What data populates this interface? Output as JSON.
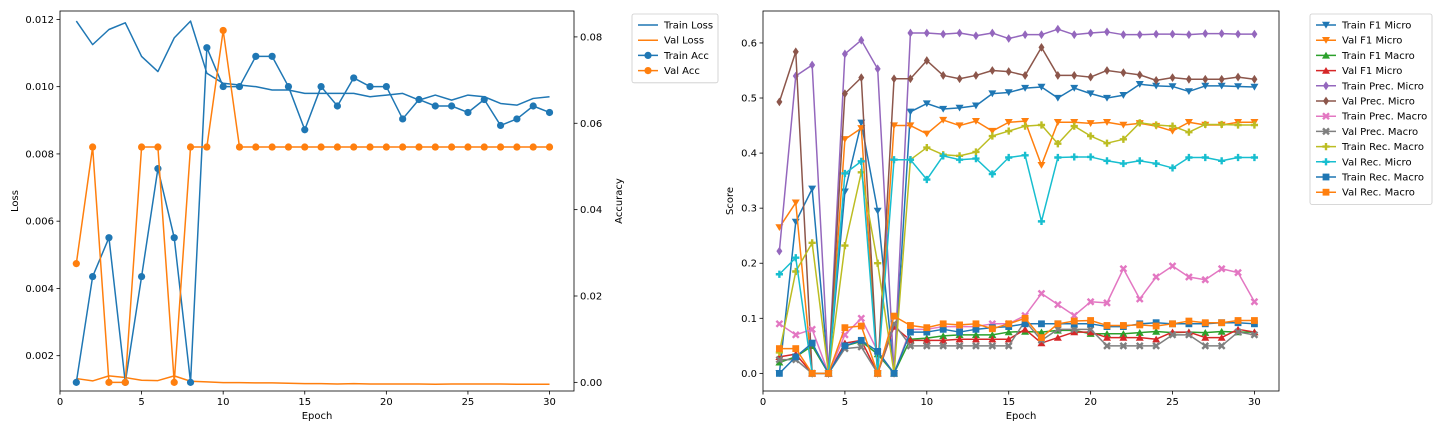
{
  "chart_data": [
    {
      "type": "line",
      "xlabel": "Epoch",
      "ylabel": "Loss",
      "y2label": "Accuracy",
      "x": [
        1,
        2,
        3,
        4,
        5,
        6,
        7,
        8,
        9,
        10,
        11,
        12,
        13,
        14,
        15,
        16,
        17,
        18,
        19,
        20,
        21,
        22,
        23,
        24,
        25,
        26,
        27,
        28,
        29,
        30
      ],
      "xlim": [
        0,
        31.5
      ],
      "ylim": [
        0.00095,
        0.01225
      ],
      "y2lim": [
        -0.002,
        0.086
      ],
      "xticks": [
        0,
        5,
        10,
        15,
        20,
        25,
        30
      ],
      "yticks": [
        0.002,
        0.004,
        0.006,
        0.008,
        0.01,
        0.012
      ],
      "ytick_labels": [
        "0.002",
        "0.004",
        "0.006",
        "0.008",
        "0.010",
        "0.012"
      ],
      "y2ticks": [
        0.0,
        0.02,
        0.04,
        0.06,
        0.08
      ],
      "y2tick_labels": [
        "0.00",
        "0.02",
        "0.04",
        "0.06",
        "0.08"
      ],
      "legend_position": "outside-top-right",
      "series": [
        {
          "name": "Train Loss",
          "axis": "left",
          "color": "#1f77b4",
          "marker": "none",
          "values": [
            0.01195,
            0.01125,
            0.0117,
            0.0119,
            0.0109,
            0.01045,
            0.01145,
            0.01195,
            0.0104,
            0.0101,
            0.01005,
            0.01,
            0.0099,
            0.0099,
            0.0098,
            0.0098,
            0.0098,
            0.0098,
            0.0097,
            0.00975,
            0.0098,
            0.0096,
            0.00975,
            0.0096,
            0.00975,
            0.0097,
            0.0095,
            0.00945,
            0.00965,
            0.0097
          ]
        },
        {
          "name": "Val Loss",
          "axis": "left",
          "color": "#ff7f0e",
          "marker": "none",
          "values": [
            0.00132,
            0.00125,
            0.0014,
            0.00135,
            0.00127,
            0.00126,
            0.0014,
            0.00124,
            0.00122,
            0.0012,
            0.0012,
            0.00119,
            0.00119,
            0.00118,
            0.00117,
            0.00117,
            0.00116,
            0.00117,
            0.00116,
            0.00116,
            0.00116,
            0.00116,
            0.00115,
            0.00116,
            0.00116,
            0.00116,
            0.00116,
            0.00115,
            0.00115,
            0.00115
          ]
        },
        {
          "name": "Train Acc",
          "axis": "right",
          "color": "#1f77b4",
          "marker": "circle",
          "values": [
            0.0,
            0.0245,
            0.0335,
            0.0,
            0.0245,
            0.0495,
            0.0335,
            0.0,
            0.0775,
            0.0685,
            0.0685,
            0.0755,
            0.0755,
            0.0685,
            0.0585,
            0.0685,
            0.064,
            0.0705,
            0.0685,
            0.0685,
            0.061,
            0.0655,
            0.064,
            0.064,
            0.0625,
            0.0655,
            0.0595,
            0.061,
            0.064,
            0.0625
          ]
        },
        {
          "name": "Val Acc",
          "axis": "right",
          "color": "#ff7f0e",
          "marker": "circle",
          "values": [
            0.0275,
            0.0545,
            0.0,
            0.0,
            0.0545,
            0.0545,
            0.0,
            0.0545,
            0.0545,
            0.0815,
            0.0545,
            0.0545,
            0.0545,
            0.0545,
            0.0545,
            0.0545,
            0.0545,
            0.0545,
            0.0545,
            0.0545,
            0.0545,
            0.0545,
            0.0545,
            0.0545,
            0.0545,
            0.0545,
            0.0545,
            0.0545,
            0.0545,
            0.0545
          ]
        }
      ]
    },
    {
      "type": "line",
      "xlabel": "Epoch",
      "ylabel": "Score",
      "x": [
        1,
        2,
        3,
        4,
        5,
        6,
        7,
        8,
        9,
        10,
        11,
        12,
        13,
        14,
        15,
        16,
        17,
        18,
        19,
        20,
        21,
        22,
        23,
        24,
        25,
        26,
        27,
        28,
        29,
        30
      ],
      "xlim": [
        0,
        31.5
      ],
      "ylim": [
        -0.032,
        0.658
      ],
      "xticks": [
        0,
        5,
        10,
        15,
        20,
        25,
        30
      ],
      "yticks": [
        0.0,
        0.1,
        0.2,
        0.3,
        0.4,
        0.5,
        0.6
      ],
      "ytick_labels": [
        "0.0",
        "0.1",
        "0.2",
        "0.3",
        "0.4",
        "0.5",
        "0.6"
      ],
      "legend_position": "outside-top-right",
      "series": [
        {
          "name": "Train F1 Micro",
          "color": "#1f77b4",
          "marker": "tri-down",
          "values": [
            0.0,
            0.275,
            0.335,
            0.0,
            0.33,
            0.455,
            0.295,
            0.0,
            0.475,
            0.49,
            0.48,
            0.482,
            0.486,
            0.508,
            0.51,
            0.518,
            0.52,
            0.5,
            0.518,
            0.508,
            0.5,
            0.505,
            0.525,
            0.522,
            0.521,
            0.512,
            0.522,
            0.522,
            0.521,
            0.52
          ]
        },
        {
          "name": "Val F1 Micro",
          "color": "#ff7f0e",
          "marker": "tri-down",
          "values": [
            0.265,
            0.31,
            0.0,
            0.0,
            0.425,
            0.445,
            0.0,
            0.45,
            0.45,
            0.435,
            0.46,
            0.45,
            0.458,
            0.44,
            0.456,
            0.458,
            0.378,
            0.456,
            0.456,
            0.454,
            0.456,
            0.451,
            0.454,
            0.449,
            0.44,
            0.456,
            0.451,
            0.451,
            0.456,
            0.456
          ]
        },
        {
          "name": "Train F1 Macro",
          "color": "#2ca02c",
          "marker": "tri-up",
          "values": [
            0.02,
            0.03,
            0.05,
            0.0,
            0.05,
            0.058,
            0.035,
            0.0,
            0.062,
            0.064,
            0.068,
            0.07,
            0.07,
            0.07,
            0.075,
            0.076,
            0.075,
            0.078,
            0.078,
            0.072,
            0.072,
            0.072,
            0.074,
            0.076,
            0.074,
            0.075,
            0.074,
            0.076,
            0.075,
            0.075
          ]
        },
        {
          "name": "Val F1 Micro",
          "color": "#d62728",
          "marker": "tri-up",
          "values": [
            0.03,
            0.035,
            0.0,
            0.0,
            0.055,
            0.06,
            0.0,
            0.085,
            0.06,
            0.06,
            0.06,
            0.062,
            0.062,
            0.062,
            0.062,
            0.08,
            0.055,
            0.065,
            0.075,
            0.075,
            0.065,
            0.065,
            0.065,
            0.062,
            0.075,
            0.075,
            0.065,
            0.065,
            0.08,
            0.075
          ]
        },
        {
          "name": "Train Prec. Micro",
          "color": "#9467bd",
          "marker": "diamond",
          "values": [
            0.222,
            0.54,
            0.56,
            0.0,
            0.58,
            0.605,
            0.553,
            0.0,
            0.618,
            0.618,
            0.616,
            0.618,
            0.613,
            0.618,
            0.608,
            0.615,
            0.615,
            0.625,
            0.615,
            0.618,
            0.62,
            0.615,
            0.615,
            0.616,
            0.616,
            0.615,
            0.617,
            0.617,
            0.616,
            0.616
          ]
        },
        {
          "name": "Val Prec. Micro",
          "color": "#8c564b",
          "marker": "diamond",
          "values": [
            0.493,
            0.584,
            0.0,
            0.0,
            0.508,
            0.537,
            0.0,
            0.535,
            0.535,
            0.568,
            0.541,
            0.535,
            0.541,
            0.55,
            0.548,
            0.541,
            0.592,
            0.541,
            0.541,
            0.538,
            0.55,
            0.546,
            0.542,
            0.532,
            0.537,
            0.534,
            0.534,
            0.534,
            0.538,
            0.534
          ]
        },
        {
          "name": "Train Prec. Macro",
          "color": "#e377c2",
          "marker": "x",
          "values": [
            0.09,
            0.07,
            0.08,
            0.0,
            0.07,
            0.1,
            0.04,
            0.0,
            0.08,
            0.08,
            0.085,
            0.085,
            0.085,
            0.09,
            0.09,
            0.105,
            0.145,
            0.125,
            0.105,
            0.13,
            0.128,
            0.19,
            0.135,
            0.175,
            0.195,
            0.175,
            0.17,
            0.19,
            0.183,
            0.13
          ]
        },
        {
          "name": "Val Prec. Macro",
          "color": "#7f7f7f",
          "marker": "x",
          "values": [
            0.025,
            0.025,
            0.0,
            0.0,
            0.045,
            0.048,
            0.0,
            0.09,
            0.05,
            0.05,
            0.05,
            0.05,
            0.05,
            0.05,
            0.05,
            0.095,
            0.06,
            0.08,
            0.08,
            0.08,
            0.05,
            0.05,
            0.05,
            0.05,
            0.07,
            0.07,
            0.05,
            0.05,
            0.075,
            0.07
          ]
        },
        {
          "name": "Train Rec. Macro",
          "color": "#bcbd22",
          "marker": "plus",
          "values": [
            0.038,
            0.185,
            0.237,
            0.0,
            0.232,
            0.365,
            0.2,
            0.0,
            0.388,
            0.41,
            0.397,
            0.395,
            0.402,
            0.431,
            0.44,
            0.449,
            0.451,
            0.417,
            0.449,
            0.431,
            0.418,
            0.425,
            0.455,
            0.451,
            0.449,
            0.438,
            0.452,
            0.452,
            0.451,
            0.451
          ]
        },
        {
          "name": "Val Rec. Micro",
          "color": "#17becf",
          "marker": "plus",
          "values": [
            0.18,
            0.21,
            0.0,
            0.0,
            0.363,
            0.385,
            0.0,
            0.388,
            0.388,
            0.352,
            0.395,
            0.388,
            0.39,
            0.362,
            0.392,
            0.396,
            0.276,
            0.392,
            0.393,
            0.393,
            0.386,
            0.381,
            0.386,
            0.381,
            0.373,
            0.392,
            0.392,
            0.386,
            0.392,
            0.392
          ]
        },
        {
          "name": "Train Rec. Macro",
          "color": "#1f77b4",
          "marker": "square",
          "values": [
            0.0,
            0.03,
            0.055,
            0.0,
            0.05,
            0.06,
            0.04,
            0.0,
            0.075,
            0.075,
            0.08,
            0.075,
            0.08,
            0.083,
            0.085,
            0.09,
            0.09,
            0.09,
            0.09,
            0.09,
            0.085,
            0.085,
            0.09,
            0.092,
            0.09,
            0.09,
            0.09,
            0.092,
            0.092,
            0.09
          ]
        },
        {
          "name": "Val Rec. Macro",
          "color": "#ff7f0e",
          "marker": "square",
          "values": [
            0.045,
            0.045,
            0.0,
            0.0,
            0.083,
            0.086,
            0.0,
            0.104,
            0.087,
            0.083,
            0.09,
            0.088,
            0.09,
            0.081,
            0.09,
            0.1,
            0.065,
            0.09,
            0.095,
            0.096,
            0.087,
            0.087,
            0.088,
            0.086,
            0.09,
            0.095,
            0.092,
            0.092,
            0.096,
            0.096
          ]
        }
      ]
    }
  ]
}
